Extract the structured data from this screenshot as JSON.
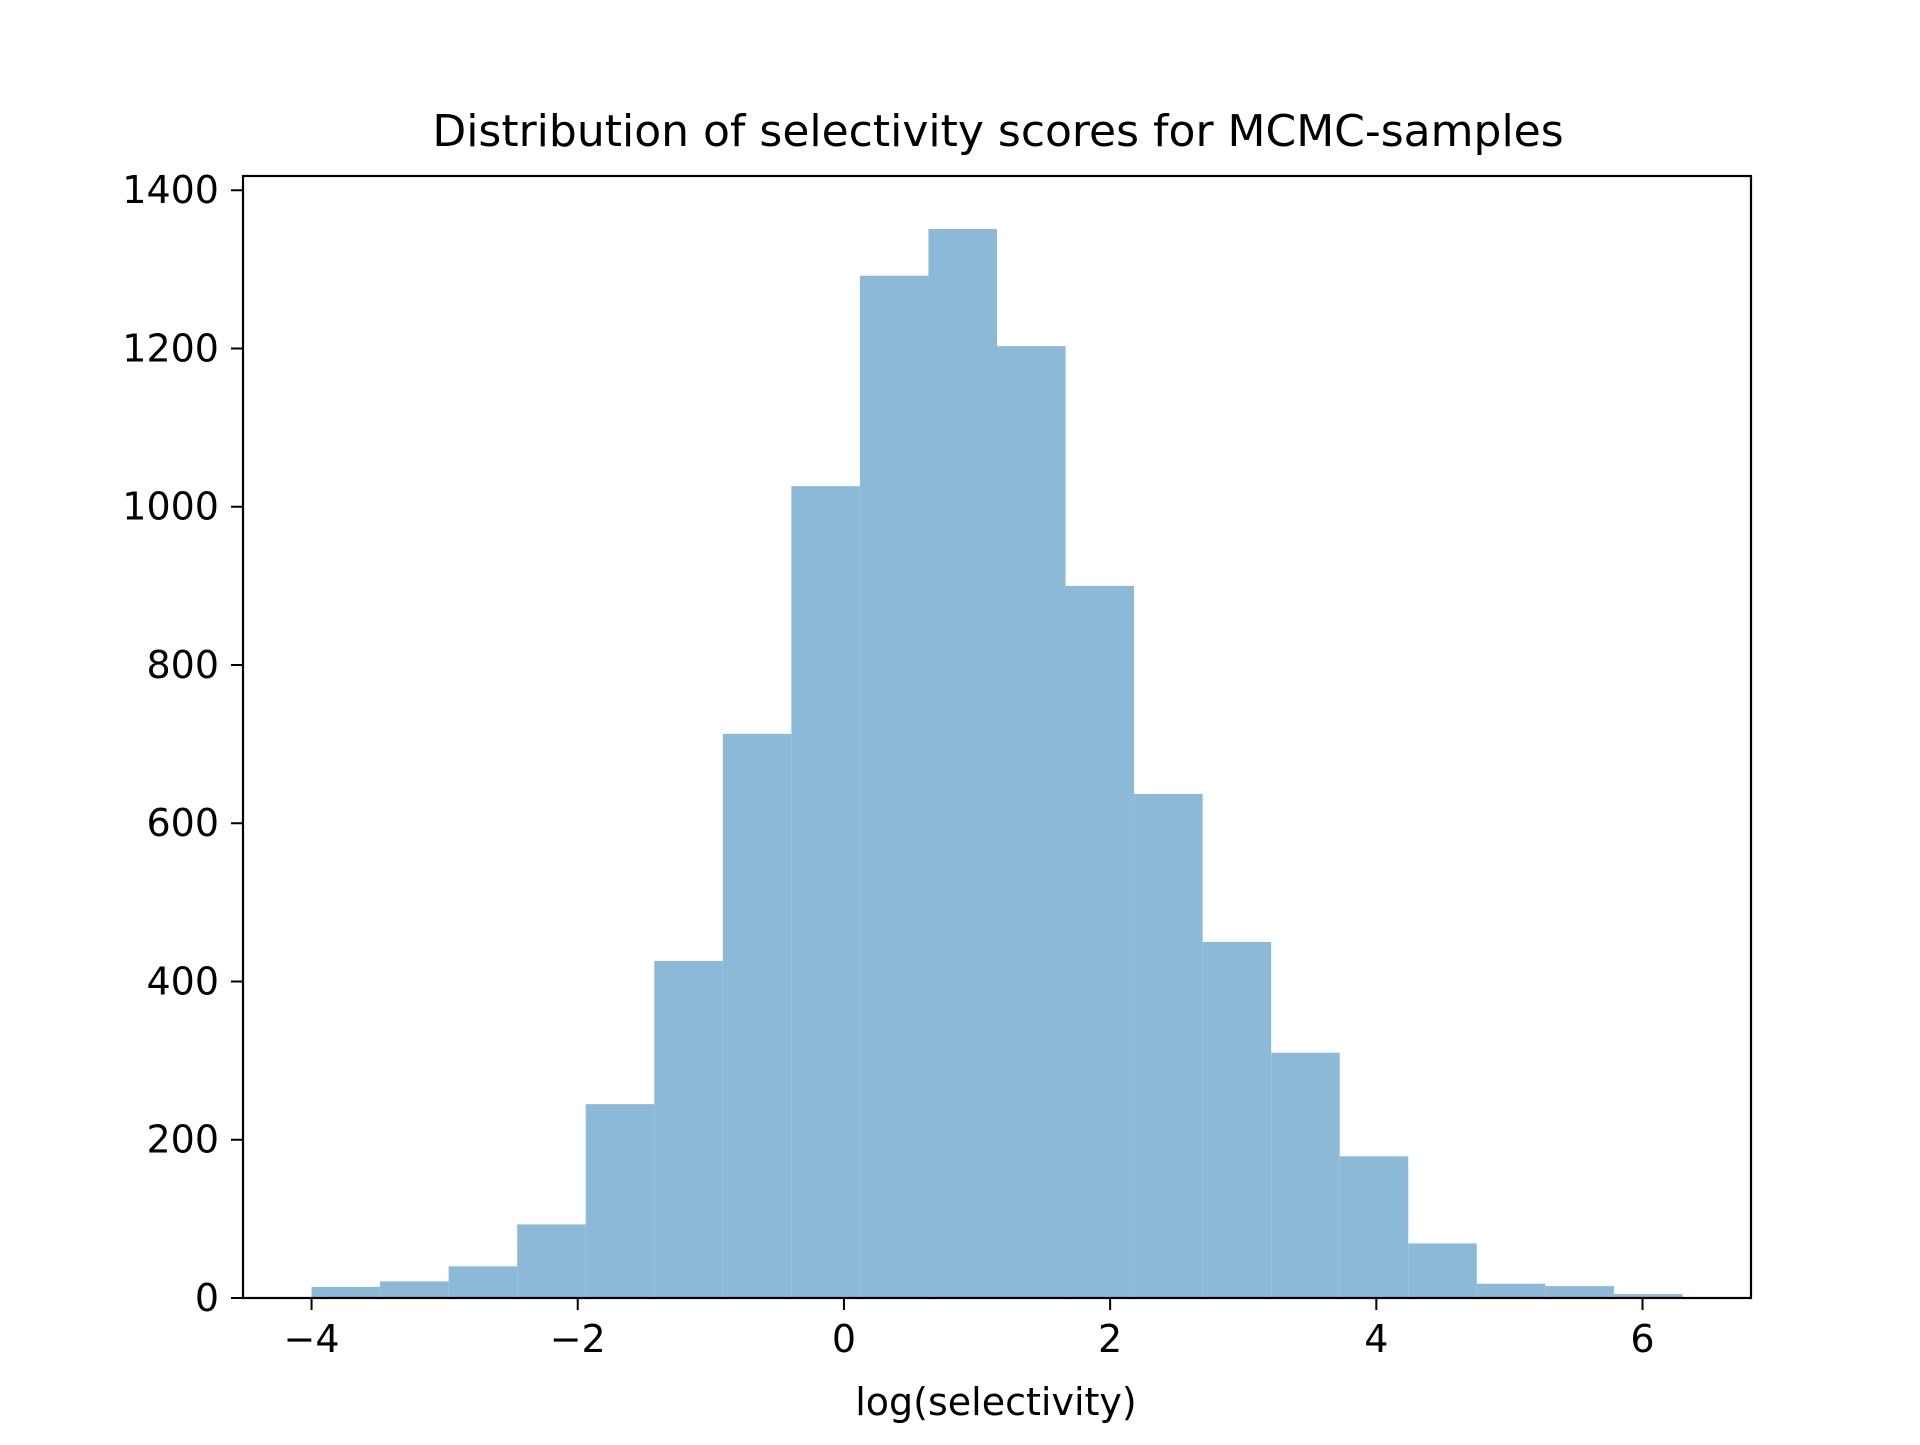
{
  "chart_data": {
    "type": "bar",
    "title": "Distribution of selectivity scores for MCMC-samples",
    "xlabel": "log(selectivity)",
    "ylabel": "",
    "bins": [
      {
        "x0": -4.0,
        "x1": -3.485,
        "count": 14
      },
      {
        "x0": -3.485,
        "x1": -2.97,
        "count": 21
      },
      {
        "x0": -2.97,
        "x1": -2.455,
        "count": 40
      },
      {
        "x0": -2.455,
        "x1": -1.94,
        "count": 93
      },
      {
        "x0": -1.94,
        "x1": -1.425,
        "count": 245
      },
      {
        "x0": -1.425,
        "x1": -0.91,
        "count": 426
      },
      {
        "x0": -0.91,
        "x1": -0.395,
        "count": 713
      },
      {
        "x0": -0.395,
        "x1": 0.12,
        "count": 1026
      },
      {
        "x0": 0.12,
        "x1": 0.635,
        "count": 1292
      },
      {
        "x0": 0.635,
        "x1": 1.15,
        "count": 1351
      },
      {
        "x0": 1.15,
        "x1": 1.665,
        "count": 1203
      },
      {
        "x0": 1.665,
        "x1": 2.18,
        "count": 900
      },
      {
        "x0": 2.18,
        "x1": 2.695,
        "count": 637
      },
      {
        "x0": 2.695,
        "x1": 3.21,
        "count": 450
      },
      {
        "x0": 3.21,
        "x1": 3.725,
        "count": 310
      },
      {
        "x0": 3.725,
        "x1": 4.24,
        "count": 179
      },
      {
        "x0": 4.24,
        "x1": 4.755,
        "count": 69
      },
      {
        "x0": 4.755,
        "x1": 5.27,
        "count": 18
      },
      {
        "x0": 5.27,
        "x1": 5.785,
        "count": 15
      },
      {
        "x0": 5.785,
        "x1": 6.3,
        "count": 5
      }
    ],
    "xlim": [
      -4.515,
      6.815
    ],
    "ylim": [
      0,
      1418
    ],
    "xticks": [
      -4,
      -2,
      0,
      2,
      4,
      6
    ],
    "xtick_labels": [
      "−4",
      "−2",
      "0",
      "2",
      "4",
      "6"
    ],
    "yticks": [
      0,
      200,
      400,
      600,
      800,
      1000,
      1200,
      1400
    ],
    "ytick_labels": [
      "0",
      "200",
      "400",
      "600",
      "800",
      "1000",
      "1200",
      "1400"
    ],
    "grid": false,
    "legend": "none",
    "bar_color": "#8db9d9",
    "axis_color": "#000000"
  }
}
